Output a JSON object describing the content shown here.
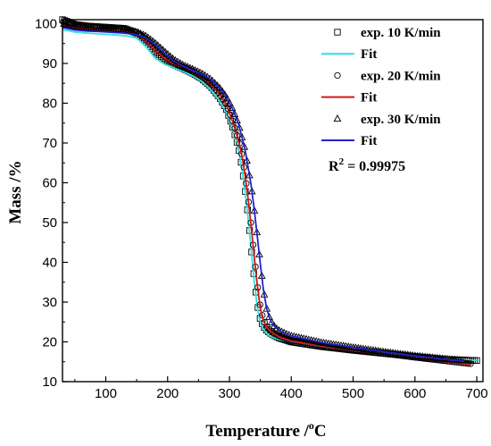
{
  "chart_data": {
    "type": "line",
    "xlabel_main": "Temperature /",
    "xlabel_sup": "o",
    "xlabel_unit": "C",
    "ylabel": "Mass /%",
    "xlim": [
      30,
      710
    ],
    "ylim": [
      10,
      101
    ],
    "xticks": [
      100,
      200,
      300,
      400,
      500,
      600,
      700
    ],
    "yticks": [
      10,
      20,
      30,
      40,
      50,
      60,
      70,
      80,
      90,
      100
    ],
    "legend_position": "top-right",
    "r2_label": "R",
    "r2_sup": "2",
    "r2_value": " = 0.99975",
    "series": [
      {
        "name": "exp. 10 K/min",
        "marker": "square",
        "color": "#000000",
        "x": [
          30,
          50,
          70,
          90,
          110,
          130,
          150,
          165,
          180,
          195,
          210,
          225,
          240,
          255,
          270,
          285,
          295,
          305,
          315,
          320,
          325,
          330,
          335,
          340,
          345,
          350,
          355,
          360,
          365,
          370,
          380,
          400,
          450,
          500,
          550,
          600,
          650,
          700
        ],
        "y": [
          101,
          99.8,
          99.4,
          99.2,
          99.0,
          98.8,
          97.6,
          95.6,
          93.0,
          91.1,
          89.7,
          88.7,
          87.6,
          86.2,
          84.2,
          81.2,
          78.5,
          74.2,
          68.6,
          64.3,
          58.9,
          52.1,
          44.2,
          36.2,
          29.6,
          25.6,
          23.9,
          22.9,
          22.3,
          21.8,
          21.0,
          20.0,
          18.8,
          17.9,
          17.1,
          16.3,
          15.6,
          15.3
        ]
      },
      {
        "name": "Fit",
        "color": "#33e0e0",
        "x": [
          30,
          50,
          70,
          90,
          110,
          130,
          150,
          165,
          180,
          195,
          210,
          225,
          240,
          255,
          270,
          285,
          295,
          305,
          315,
          320,
          325,
          330,
          335,
          340,
          345,
          350,
          355,
          360,
          365,
          370,
          380,
          400,
          450,
          500,
          550,
          600,
          650,
          700
        ],
        "y": [
          98.5,
          97.9,
          97.6,
          97.4,
          97.2,
          97.0,
          96.4,
          94.2,
          91.3,
          89.8,
          88.9,
          88.0,
          86.9,
          85.5,
          83.4,
          80.4,
          77.7,
          73.4,
          67.9,
          63.6,
          58.2,
          51.3,
          43.4,
          35.4,
          28.8,
          24.8,
          23.1,
          22.1,
          21.5,
          21.1,
          20.6,
          19.9,
          18.8,
          17.9,
          17.1,
          16.3,
          15.7,
          15.3
        ]
      },
      {
        "name": "exp. 20 K/min",
        "marker": "circle",
        "color": "#000000",
        "x": [
          30,
          50,
          70,
          90,
          110,
          130,
          150,
          165,
          180,
          195,
          210,
          225,
          240,
          255,
          270,
          285,
          295,
          305,
          315,
          320,
          325,
          330,
          335,
          340,
          345,
          350,
          355,
          360,
          365,
          370,
          380,
          400,
          450,
          500,
          550,
          600,
          650,
          690
        ],
        "y": [
          100.5,
          99.6,
          99.2,
          99.0,
          98.8,
          98.6,
          97.8,
          96.2,
          93.8,
          91.8,
          90.2,
          89.1,
          88.1,
          86.8,
          84.9,
          82.3,
          79.7,
          75.6,
          70.6,
          67.1,
          62.5,
          56.4,
          49.4,
          41.8,
          34.5,
          28.6,
          25.5,
          23.9,
          23.0,
          22.4,
          21.5,
          20.4,
          19.1,
          18.1,
          17.1,
          16.1,
          15.2,
          14.5
        ]
      },
      {
        "name": "Fit",
        "color": "#d11818",
        "x": [
          30,
          50,
          70,
          90,
          110,
          130,
          150,
          165,
          180,
          195,
          210,
          225,
          240,
          255,
          270,
          285,
          295,
          305,
          315,
          320,
          325,
          330,
          335,
          340,
          345,
          350,
          355,
          360,
          365,
          370,
          380,
          400,
          450,
          500,
          550,
          600,
          650,
          690
        ],
        "y": [
          99.5,
          98.9,
          98.6,
          98.4,
          98.2,
          98.0,
          97.3,
          95.6,
          93.2,
          91.3,
          89.9,
          88.9,
          87.9,
          86.6,
          84.7,
          82.1,
          79.5,
          75.4,
          70.4,
          66.9,
          62.3,
          56.2,
          49.2,
          41.6,
          34.3,
          28.4,
          25.3,
          23.7,
          22.8,
          22.2,
          21.3,
          20.2,
          18.9,
          17.9,
          16.9,
          15.9,
          15.0,
          14.3
        ]
      },
      {
        "name": "exp. 30 K/min",
        "marker": "triangle",
        "color": "#000000",
        "x": [
          30,
          50,
          70,
          90,
          110,
          130,
          150,
          165,
          180,
          195,
          210,
          225,
          240,
          255,
          270,
          285,
          295,
          305,
          315,
          325,
          335,
          340,
          345,
          350,
          355,
          360,
          365,
          370,
          375,
          380,
          390,
          400,
          450,
          500,
          550,
          600,
          650,
          680
        ],
        "y": [
          100.0,
          99.3,
          99.0,
          98.9,
          98.7,
          98.5,
          97.9,
          96.9,
          95.1,
          93.0,
          91.0,
          89.6,
          88.6,
          87.5,
          86.0,
          83.7,
          81.6,
          78.6,
          74.6,
          68.6,
          59.4,
          53.4,
          46.6,
          39.6,
          33.1,
          28.5,
          25.9,
          24.4,
          23.5,
          22.9,
          22.1,
          21.5,
          19.8,
          18.6,
          17.5,
          16.5,
          15.7,
          15.3
        ]
      },
      {
        "name": "Fit",
        "color": "#2222cc",
        "x": [
          30,
          50,
          70,
          90,
          110,
          130,
          150,
          165,
          180,
          195,
          210,
          225,
          240,
          255,
          270,
          285,
          295,
          305,
          315,
          325,
          335,
          340,
          345,
          350,
          355,
          360,
          365,
          370,
          375,
          380,
          390,
          400,
          450,
          500,
          550,
          600,
          650,
          680
        ],
        "y": [
          99.0,
          98.4,
          98.1,
          98.0,
          97.8,
          97.6,
          97.2,
          96.4,
          94.7,
          92.6,
          90.6,
          89.3,
          88.3,
          87.3,
          85.9,
          83.7,
          81.6,
          78.6,
          74.6,
          68.6,
          59.4,
          53.4,
          46.6,
          39.6,
          33.1,
          28.5,
          25.9,
          24.4,
          23.5,
          22.9,
          22.1,
          21.5,
          19.8,
          18.6,
          17.5,
          16.5,
          15.6,
          15.1
        ]
      }
    ]
  }
}
